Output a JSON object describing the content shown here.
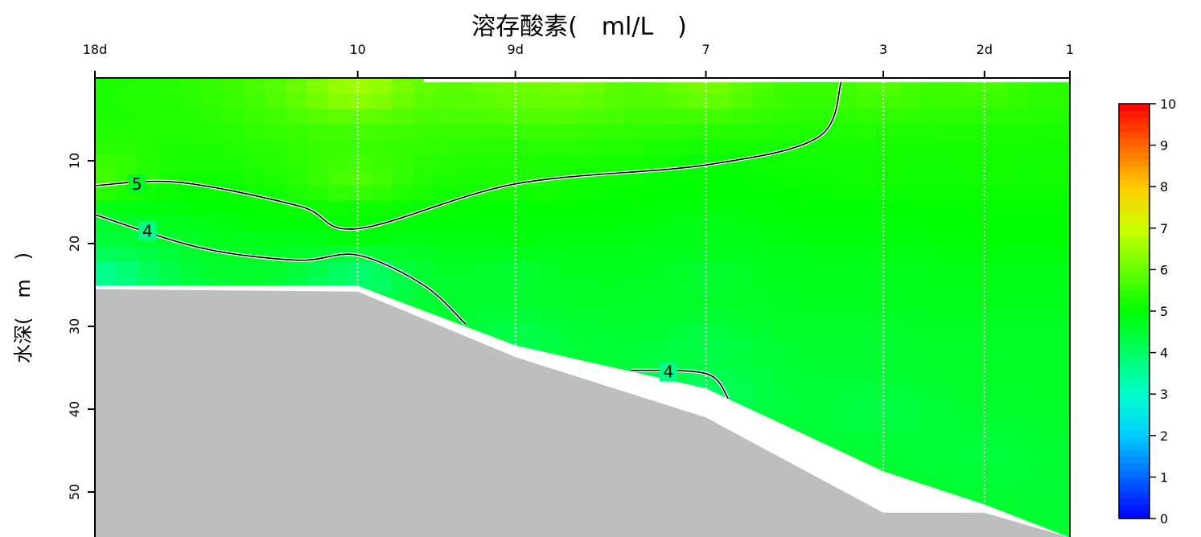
{
  "chart_data": {
    "type": "heatmap",
    "title": "溶存酸素(　ml/L　)",
    "xlabel": "",
    "ylabel": "水深(　m　)",
    "stations": [
      {
        "label": "18d",
        "distance": 0
      },
      {
        "label": "10",
        "distance": 10
      },
      {
        "label": "9d",
        "distance": 16
      },
      {
        "label": "7",
        "distance": 23.25
      },
      {
        "label": "3",
        "distance": 30
      },
      {
        "label": "2d",
        "distance": 33.85
      },
      {
        "label": "1",
        "distance": 37.1
      }
    ],
    "xlim": [
      0,
      37.1
    ],
    "ylim": [
      0,
      55.5
    ],
    "y_inverted": true,
    "y_ticks": [
      10,
      20,
      30,
      40,
      50
    ],
    "colorbar": {
      "range": [
        0,
        10
      ],
      "ticks": [
        0,
        1,
        2,
        3,
        4,
        5,
        6,
        7,
        8,
        9,
        10
      ],
      "colors": [
        "#0000ff",
        "#0066ff",
        "#00ccff",
        "#00ffcc",
        "#00ff66",
        "#00ff00",
        "#66ff00",
        "#ccff00",
        "#ffcc00",
        "#ff6600",
        "#ff0000"
      ]
    },
    "contours": [
      {
        "level": 5,
        "label": "5",
        "points": [
          [
            0,
            13
          ],
          [
            3.2,
            12.6
          ],
          [
            7.8,
            15.5
          ],
          [
            10,
            18.2
          ],
          [
            16,
            12.8
          ],
          [
            23.25,
            10.5
          ],
          [
            27.5,
            7.2
          ],
          [
            28.4,
            0.5
          ]
        ]
      },
      {
        "level": 4,
        "label": "4",
        "points": [
          [
            0,
            16.5
          ],
          [
            4,
            20.5
          ],
          [
            7.7,
            22
          ],
          [
            10,
            21.4
          ],
          [
            12.5,
            25
          ],
          [
            14.1,
            29.7
          ]
        ]
      },
      {
        "level": 4,
        "label": "4",
        "points": [
          [
            20.4,
            35.3
          ],
          [
            23.25,
            35.7
          ],
          [
            24.1,
            38.7
          ]
        ]
      }
    ],
    "seafloor": [
      [
        0,
        25.5
      ],
      [
        10,
        25.8
      ],
      [
        16,
        33.7
      ],
      [
        23.25,
        41
      ],
      [
        30,
        52.5
      ],
      [
        33.85,
        52.5
      ],
      [
        37.1,
        55.5
      ]
    ],
    "data_bottom": [
      [
        0,
        25.1
      ],
      [
        10,
        25.1
      ],
      [
        16,
        32.3
      ],
      [
        23.25,
        37.5
      ],
      [
        30,
        47.5
      ],
      [
        33.85,
        51.5
      ],
      [
        37.1,
        55.5
      ]
    ],
    "data_top": [
      [
        0,
        0
      ],
      [
        12.5,
        0
      ],
      [
        12.5,
        0.5
      ],
      [
        15,
        0.5
      ],
      [
        37.1,
        0.5
      ]
    ],
    "field": [
      [
        18,
        1,
        6.2
      ],
      [
        10,
        1,
        6.6
      ],
      [
        16,
        1,
        6.1
      ],
      [
        23.25,
        1,
        6.2
      ],
      [
        30,
        1,
        5.8
      ],
      [
        33.85,
        1,
        5.7
      ],
      [
        37.1,
        1,
        5.4
      ],
      [
        0,
        12,
        5.7
      ],
      [
        10,
        12,
        5.8
      ],
      [
        16,
        12,
        5.3
      ],
      [
        23.25,
        12,
        5.0
      ],
      [
        30,
        12,
        5.2
      ],
      [
        33.85,
        12,
        5.2
      ],
      [
        37.1,
        12,
        5.2
      ],
      [
        0,
        18,
        4.5
      ],
      [
        10,
        18,
        5.0
      ],
      [
        16,
        18,
        4.9
      ],
      [
        23.25,
        18,
        4.8
      ],
      [
        30,
        18,
        4.9
      ],
      [
        33.85,
        18,
        5.0
      ],
      [
        37.1,
        18,
        5.0
      ],
      [
        0,
        24,
        3.5
      ],
      [
        10,
        24,
        3.8
      ],
      [
        16,
        24,
        4.5
      ],
      [
        23.25,
        24,
        4.5
      ],
      [
        30,
        24,
        4.7
      ],
      [
        33.85,
        24,
        4.8
      ],
      [
        37.1,
        24,
        4.8
      ],
      [
        16,
        32,
        4.2
      ],
      [
        23.25,
        32,
        4.3
      ],
      [
        30,
        32,
        4.5
      ],
      [
        33.85,
        32,
        4.6
      ],
      [
        37.1,
        32,
        4.6
      ],
      [
        23.25,
        38,
        4.0
      ],
      [
        30,
        40,
        4.3
      ],
      [
        33.85,
        45,
        4.4
      ],
      [
        37.1,
        50,
        4.5
      ],
      [
        37.1,
        55,
        4.5
      ]
    ]
  }
}
